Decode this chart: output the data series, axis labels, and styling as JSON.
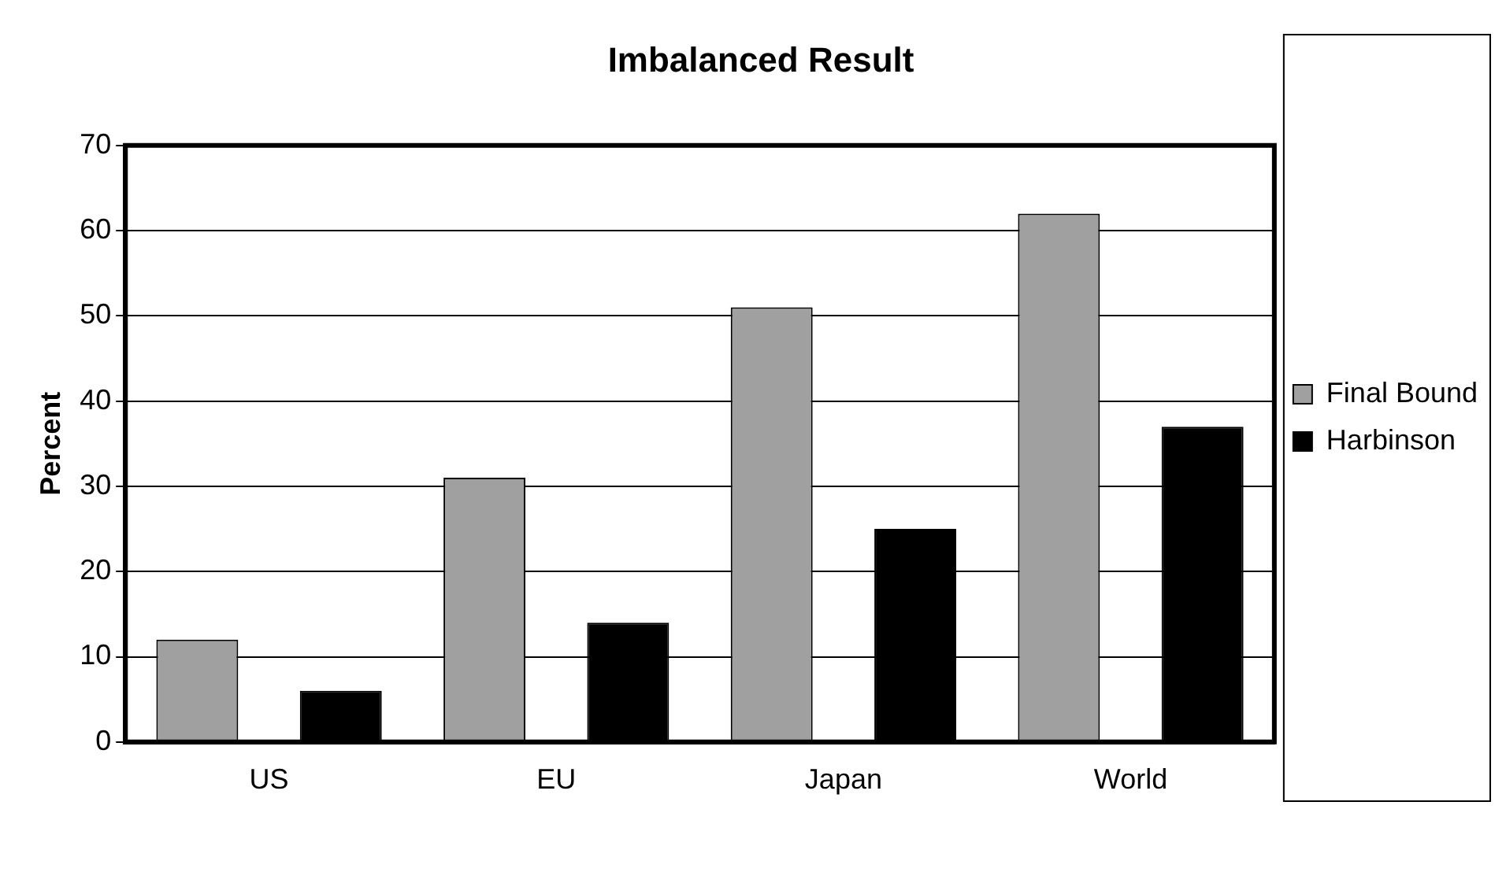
{
  "chart_data": {
    "type": "bar",
    "title": "Imbalanced Result",
    "ylabel": "Percent",
    "categories": [
      "US",
      "EU",
      "Japan",
      "World"
    ],
    "series": [
      {
        "name": "Final Bound",
        "color": "#a0a0a0",
        "values": [
          12,
          31,
          51,
          62
        ]
      },
      {
        "name": "Harbinson",
        "color": "#000000",
        "values": [
          6,
          14,
          25,
          37
        ]
      }
    ],
    "ylim": [
      0,
      70
    ],
    "yticks": [
      0,
      10,
      20,
      30,
      40,
      50,
      60,
      70
    ],
    "grid": "y",
    "legend": "right"
  }
}
